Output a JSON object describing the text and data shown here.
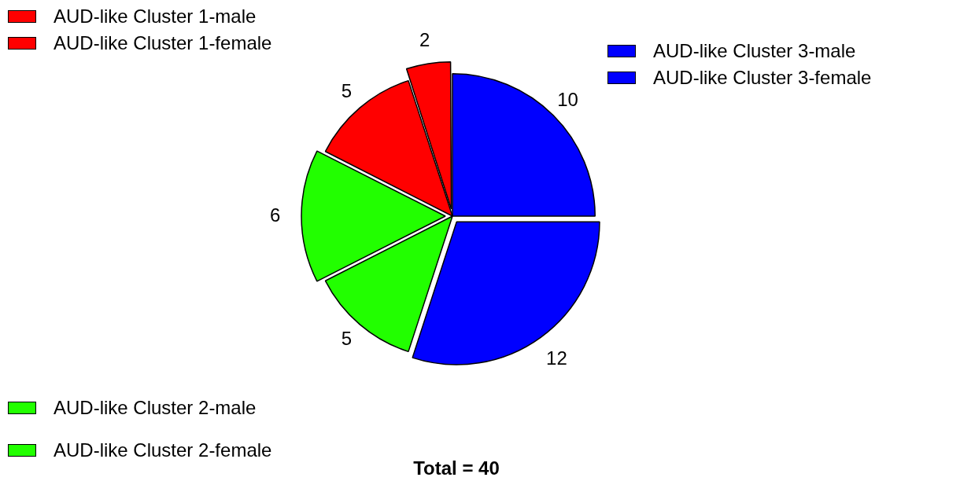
{
  "chart_data": {
    "type": "pie",
    "title": "Total = 40",
    "categories": [
      "AUD-like Cluster 3-male",
      "AUD-like Cluster 3-female",
      "AUD-like Cluster 2-male",
      "AUD-like Cluster 2-female",
      "AUD-like Cluster 1-male",
      "AUD-like Cluster 1-female"
    ],
    "values": [
      10,
      12,
      5,
      6,
      5,
      2
    ],
    "colors": [
      "#0000ff",
      "#0000ff",
      "#22ff00",
      "#22ff00",
      "#ff0000",
      "#ff0000"
    ],
    "data_labels": true,
    "legend": "left"
  }
}
